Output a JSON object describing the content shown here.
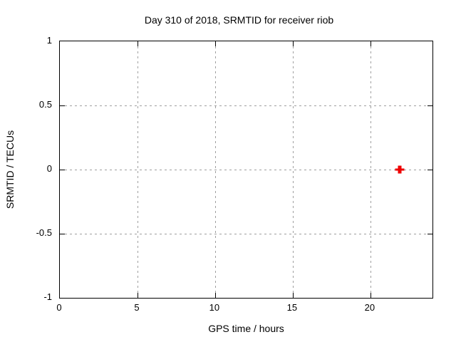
{
  "chart_data": {
    "type": "scatter",
    "title": "Day 310 of 2018, SRMTID for receiver riob",
    "xlabel": "GPS time / hours",
    "ylabel": "SRMTID / TECUs",
    "xlim": [
      0,
      24
    ],
    "ylim": [
      -1,
      1
    ],
    "xticks": [
      0,
      5,
      10,
      15,
      20
    ],
    "yticks": [
      -1,
      -0.5,
      0,
      0.5,
      1
    ],
    "grid": true,
    "legend": "none",
    "colors": {
      "marker": "#ee0000",
      "gridline": "#9f9f9f",
      "border": "#000000",
      "text": "#000000",
      "background": "#ffffff"
    },
    "series": [
      {
        "name": "SRMTID",
        "marker": "bold-plus",
        "color": "#ee0000",
        "points": [
          {
            "x": 21.9,
            "y": 0.0
          }
        ]
      }
    ]
  }
}
